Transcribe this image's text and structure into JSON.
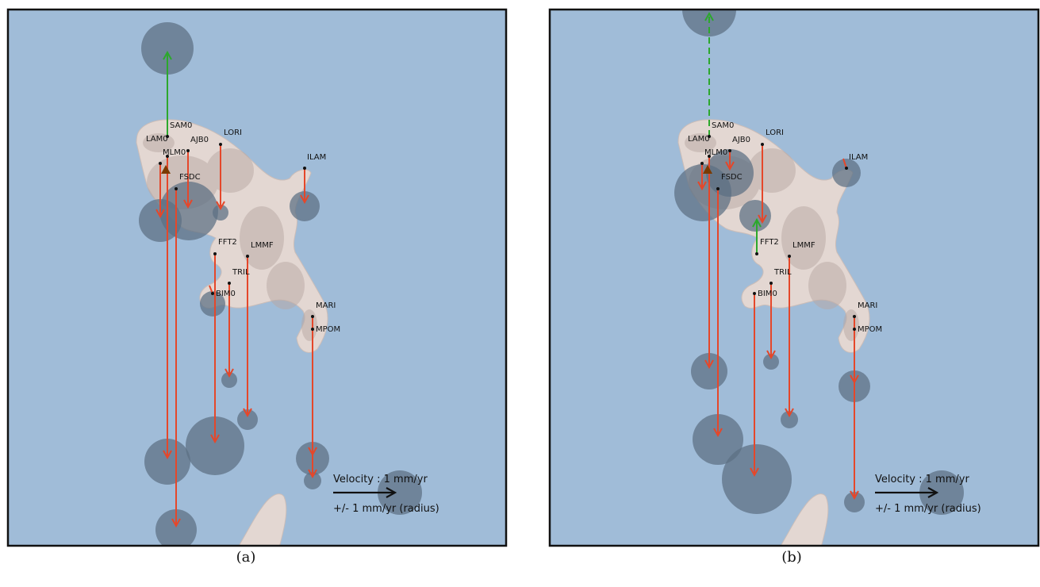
{
  "colors": {
    "sea": "#a0bcd8",
    "land": "#e3d7d2",
    "relief": "#b9a8a3",
    "error_circle": "#5c6f82",
    "down_arrow": "#e5472a",
    "up_arrow": "#2ca82c",
    "volcano": "#7a3a00",
    "legend_arrow": "#111111",
    "frame": "#111111"
  },
  "legend": {
    "velocity_label": "Velocity : 1 mm/yr",
    "radius_label": "+/- 1 mm/yr (radius)"
  },
  "panels": [
    {
      "caption": "(a)",
      "stations": [
        {
          "name": "SAM0"
        },
        {
          "name": "LAM0"
        },
        {
          "name": "MLM0"
        },
        {
          "name": "AJB0"
        },
        {
          "name": "LORI"
        },
        {
          "name": "ILAM"
        },
        {
          "name": "FSDC"
        },
        {
          "name": "FFT2"
        },
        {
          "name": "LMMF"
        },
        {
          "name": "TRIL"
        },
        {
          "name": "BIM0"
        },
        {
          "name": "MARI"
        },
        {
          "name": "MPOM"
        }
      ]
    },
    {
      "caption": "(b)",
      "stations": [
        {
          "name": "SAM0"
        },
        {
          "name": "LAM0"
        },
        {
          "name": "MLM0"
        },
        {
          "name": "AJB0"
        },
        {
          "name": "LORI"
        },
        {
          "name": "ILAM"
        },
        {
          "name": "FSDC"
        },
        {
          "name": "FFT2"
        },
        {
          "name": "LMMF"
        },
        {
          "name": "TRIL"
        },
        {
          "name": "BIM0"
        },
        {
          "name": "MARI"
        },
        {
          "name": "MPOM"
        }
      ]
    }
  ]
}
